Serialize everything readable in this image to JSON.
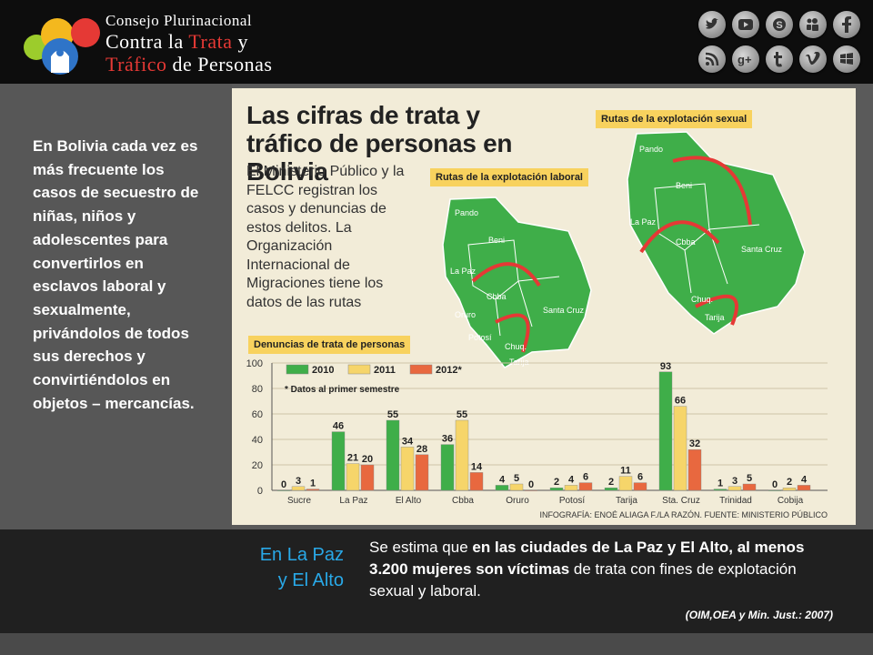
{
  "header": {
    "title_line1": "Consejo Plurinacional",
    "title_line2_a": "Contra la ",
    "title_line2_b": "Trata",
    "title_line2_c": " y",
    "title_line3_a": "Tráfico",
    "title_line3_b": " de Personas",
    "social_icons": [
      "twitter-icon",
      "youtube-icon",
      "skype-icon",
      "myspace-icon",
      "facebook-icon",
      "rss-icon",
      "google-plus-icon",
      "tumblr-icon",
      "vimeo-icon",
      "windows-icon"
    ]
  },
  "left_text": "En Bolivia cada vez es más frecuente los casos de secuestro de niñas, niños y adolescentes para convertirlos en esclavos laboral y sexualmente, privándolos de todos sus derechos y convirtiéndolos en objetos – mercancías.",
  "infographic": {
    "title": "Las cifras de trata y tráfico de personas en Bolivia",
    "description": "El Ministerio Público y la FELCC registran los casos y denuncias de estos delitos. La Organización Internacional de Migraciones tiene los datos de las rutas",
    "tag_laboral": "Rutas de la explotación laboral",
    "tag_sexual": "Rutas de la explotación sexual",
    "tag_denuncias": "Denuncias de trata de personas",
    "map_labels_small": [
      "Pando",
      "Beni",
      "La Paz",
      "Cbba",
      "Oruro",
      "Santa Cruz",
      "Chuq.",
      "Potosí",
      "Tarija"
    ],
    "map_labels_large": [
      "Pando",
      "Beni",
      "La Paz",
      "Cbba",
      "Santa Cruz",
      "Chuq.",
      "Tarija"
    ],
    "credit": "INFOGRAFÍA: ENOÉ ALIAGA F./LA RAZÓN. FUENTE: MINISTERIO PÚBLICO"
  },
  "chart_data": {
    "type": "bar",
    "categories": [
      "Sucre",
      "La Paz",
      "El Alto",
      "Cbba",
      "Oruro",
      "Potosí",
      "Tarija",
      "Sta. Cruz",
      "Trinidad",
      "Cobija"
    ],
    "series": [
      {
        "name": "2010",
        "values": [
          0,
          46,
          55,
          36,
          4,
          2,
          2,
          93,
          1,
          0
        ]
      },
      {
        "name": "2011",
        "values": [
          3,
          21,
          34,
          55,
          5,
          4,
          11,
          66,
          3,
          2
        ]
      },
      {
        "name": "2012*",
        "values": [
          1,
          20,
          28,
          14,
          0,
          6,
          6,
          32,
          5,
          4
        ]
      }
    ],
    "ylim": [
      0,
      100
    ],
    "yticks": [
      0,
      20,
      40,
      60,
      80,
      100
    ],
    "note": "* Datos al primer semestre",
    "colors": [
      "#3fae49",
      "#f6d56a",
      "#e8683f"
    ]
  },
  "footer": {
    "heading_line1": "En La Paz",
    "heading_line2": "y El Alto",
    "text_a": "Se estima que ",
    "text_b": "en las ciudades de La Paz y El Alto, al menos 3.200 mujeres son víctimas",
    "text_c": " de trata con fines de explotación sexual y laboral.",
    "source": "(OIM,OEA y Min. Just.: 2007)"
  }
}
